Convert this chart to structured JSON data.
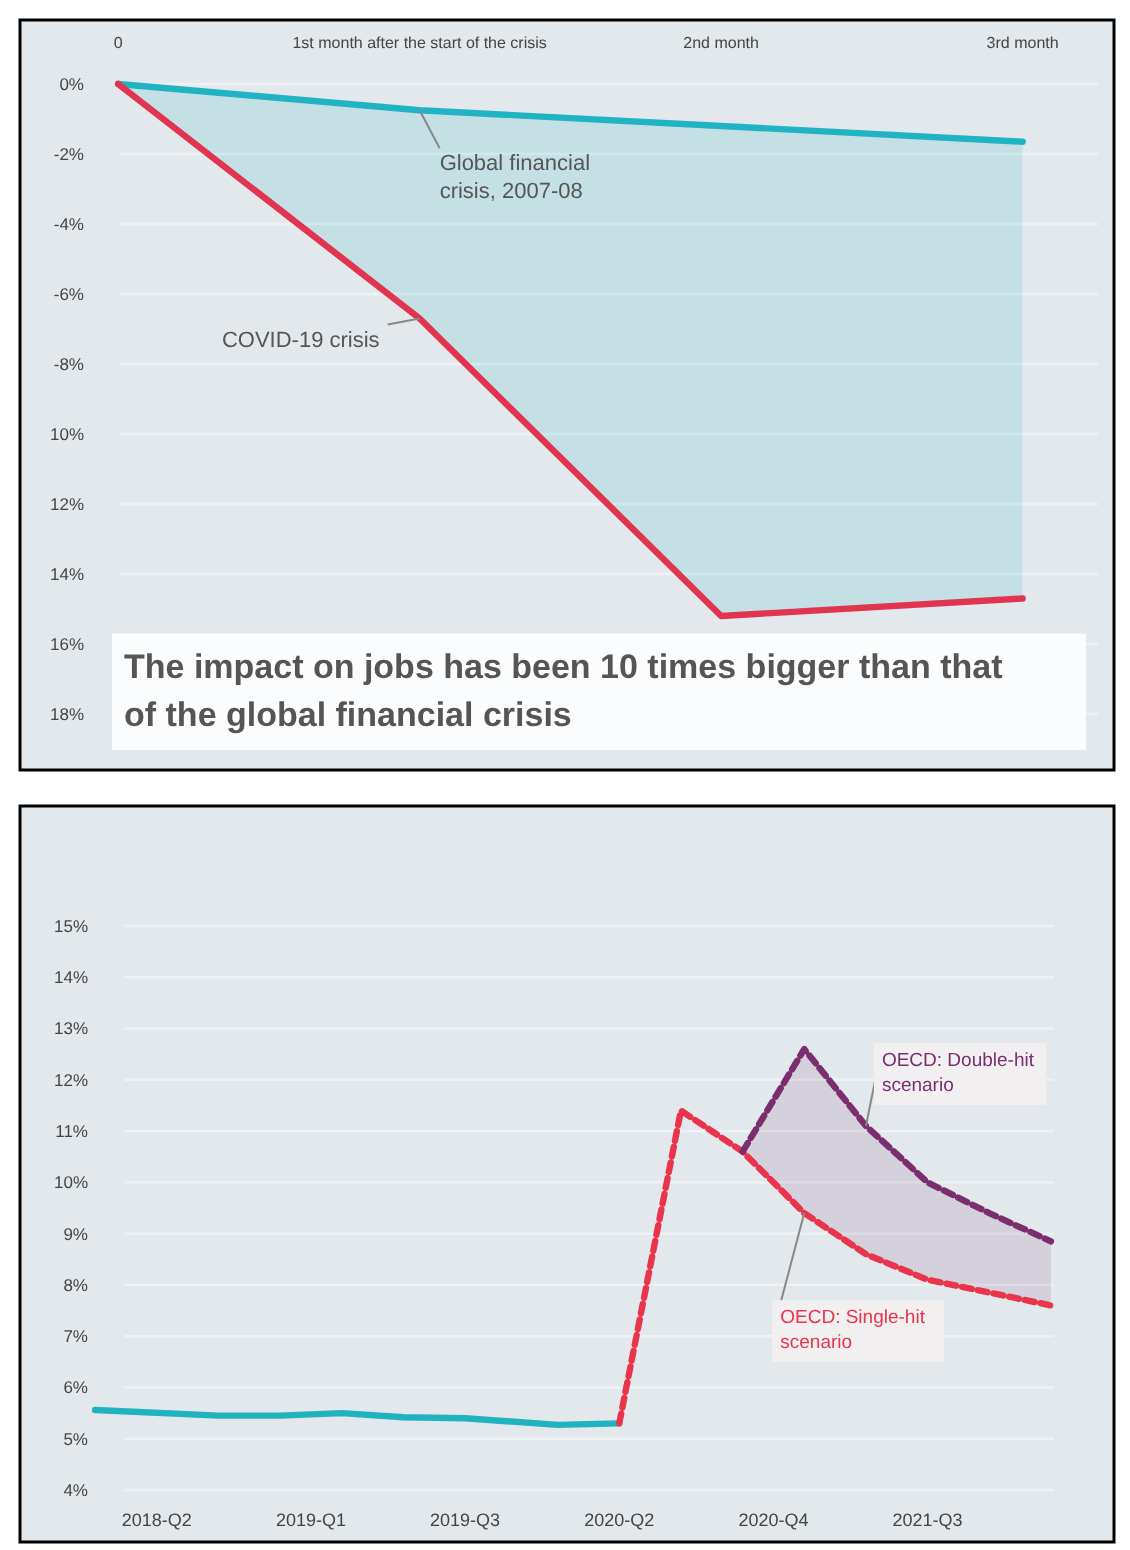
{
  "chart_data": [
    {
      "type": "line",
      "title": "The impact on jobs has been 10 times bigger than that of the global financial crisis",
      "categories": [
        "0",
        "1st month after the start of the crisis",
        "2nd month",
        "3rd month"
      ],
      "ylim": [
        -18,
        0
      ],
      "yticks": [
        {
          "value": 0,
          "label": "0%"
        },
        {
          "value": -2,
          "label": "-2%"
        },
        {
          "value": -4,
          "label": "-4%"
        },
        {
          "value": -6,
          "label": "-6%"
        },
        {
          "value": -8,
          "label": "-8%"
        },
        {
          "value": -10,
          "label": "10%"
        },
        {
          "value": -12,
          "label": "12%"
        },
        {
          "value": -14,
          "label": "14%"
        },
        {
          "value": -16,
          "label": "16%"
        },
        {
          "value": -18,
          "label": "18%"
        }
      ],
      "grid": "y",
      "marker": "none",
      "series": [
        {
          "name": "Global financial crisis, 2007-08",
          "color": "#1fb3c4",
          "values": [
            0,
            -0.75,
            -1.2,
            -1.65
          ],
          "lower": [
            0,
            -6.7,
            -15.2,
            -14.7
          ],
          "upper": [
            0,
            -0.75,
            -1.2,
            -1.65
          ]
        },
        {
          "name": "COVID-19 crisis",
          "color": "#e0344f",
          "values": [
            0,
            -6.7,
            -15.2,
            -14.7
          ]
        }
      ]
    },
    {
      "type": "line",
      "categories": [
        null,
        null,
        "2018-Q2",
        null,
        null,
        null,
        null,
        "2019-Q1",
        null,
        null,
        null,
        null,
        "2019-Q3",
        null,
        null,
        null,
        null,
        "2020-Q2",
        null,
        null,
        null,
        null,
        "2020-Q4",
        null,
        null,
        null,
        null,
        "2021-Q3",
        null,
        null,
        null,
        null
      ],
      "ylim": [
        4,
        15
      ],
      "yticks": [
        {
          "value": 4,
          "label": "4%"
        },
        {
          "value": 5,
          "label": "5%"
        },
        {
          "value": 6,
          "label": "6%"
        },
        {
          "value": 7,
          "label": "7%"
        },
        {
          "value": 8,
          "label": "8%"
        },
        {
          "value": 9,
          "label": "9%"
        },
        {
          "value": 10,
          "label": "10%"
        },
        {
          "value": 11,
          "label": "11%"
        },
        {
          "value": 12,
          "label": "12%"
        },
        {
          "value": 13,
          "label": "13%"
        },
        {
          "value": 14,
          "label": "14%"
        },
        {
          "value": 15,
          "label": "15%"
        }
      ],
      "grid": "y",
      "marker": "none",
      "series": [
        {
          "color": "#21b2bf",
          "line_style": "solid",
          "values": [
            5.56,
            null,
            null,
            null,
            5.45,
            null,
            5.45,
            null,
            5.5,
            null,
            5.42,
            null,
            5.4,
            null,
            null,
            5.27,
            null,
            5.3,
            null,
            null,
            null,
            null,
            null,
            null,
            null,
            null,
            null,
            null,
            null,
            null,
            null,
            null
          ]
        },
        {
          "name": "OECD: Single-hit scenario",
          "color": "#e8354b",
          "line_style": "dashed",
          "values": [
            null,
            null,
            null,
            null,
            null,
            null,
            null,
            null,
            null,
            null,
            null,
            null,
            null,
            null,
            null,
            null,
            null,
            5.3,
            null,
            11.4,
            null,
            10.6,
            null,
            9.4,
            null,
            8.6,
            null,
            8.1,
            null,
            7.85,
            null,
            7.6
          ]
        },
        {
          "name": "OECD: Double-hit scenario",
          "color": "#7a2e6e",
          "line_style": "dashed",
          "values": [
            null,
            null,
            null,
            null,
            null,
            null,
            null,
            null,
            null,
            null,
            null,
            null,
            null,
            null,
            null,
            null,
            null,
            null,
            null,
            null,
            null,
            10.6,
            null,
            12.6,
            null,
            11.1,
            null,
            10.0,
            null,
            9.4,
            null,
            8.85
          ],
          "lower": [
            null,
            null,
            null,
            null,
            null,
            null,
            null,
            null,
            null,
            null,
            null,
            null,
            null,
            null,
            null,
            null,
            null,
            null,
            null,
            null,
            null,
            10.6,
            null,
            9.4,
            null,
            8.6,
            null,
            8.1,
            null,
            7.85,
            null,
            7.6
          ],
          "upper": [
            null,
            null,
            null,
            null,
            null,
            null,
            null,
            null,
            null,
            null,
            null,
            null,
            null,
            null,
            null,
            null,
            null,
            null,
            null,
            null,
            null,
            10.6,
            null,
            12.6,
            null,
            11.1,
            null,
            10.0,
            null,
            9.4,
            null,
            8.85
          ]
        }
      ]
    }
  ]
}
